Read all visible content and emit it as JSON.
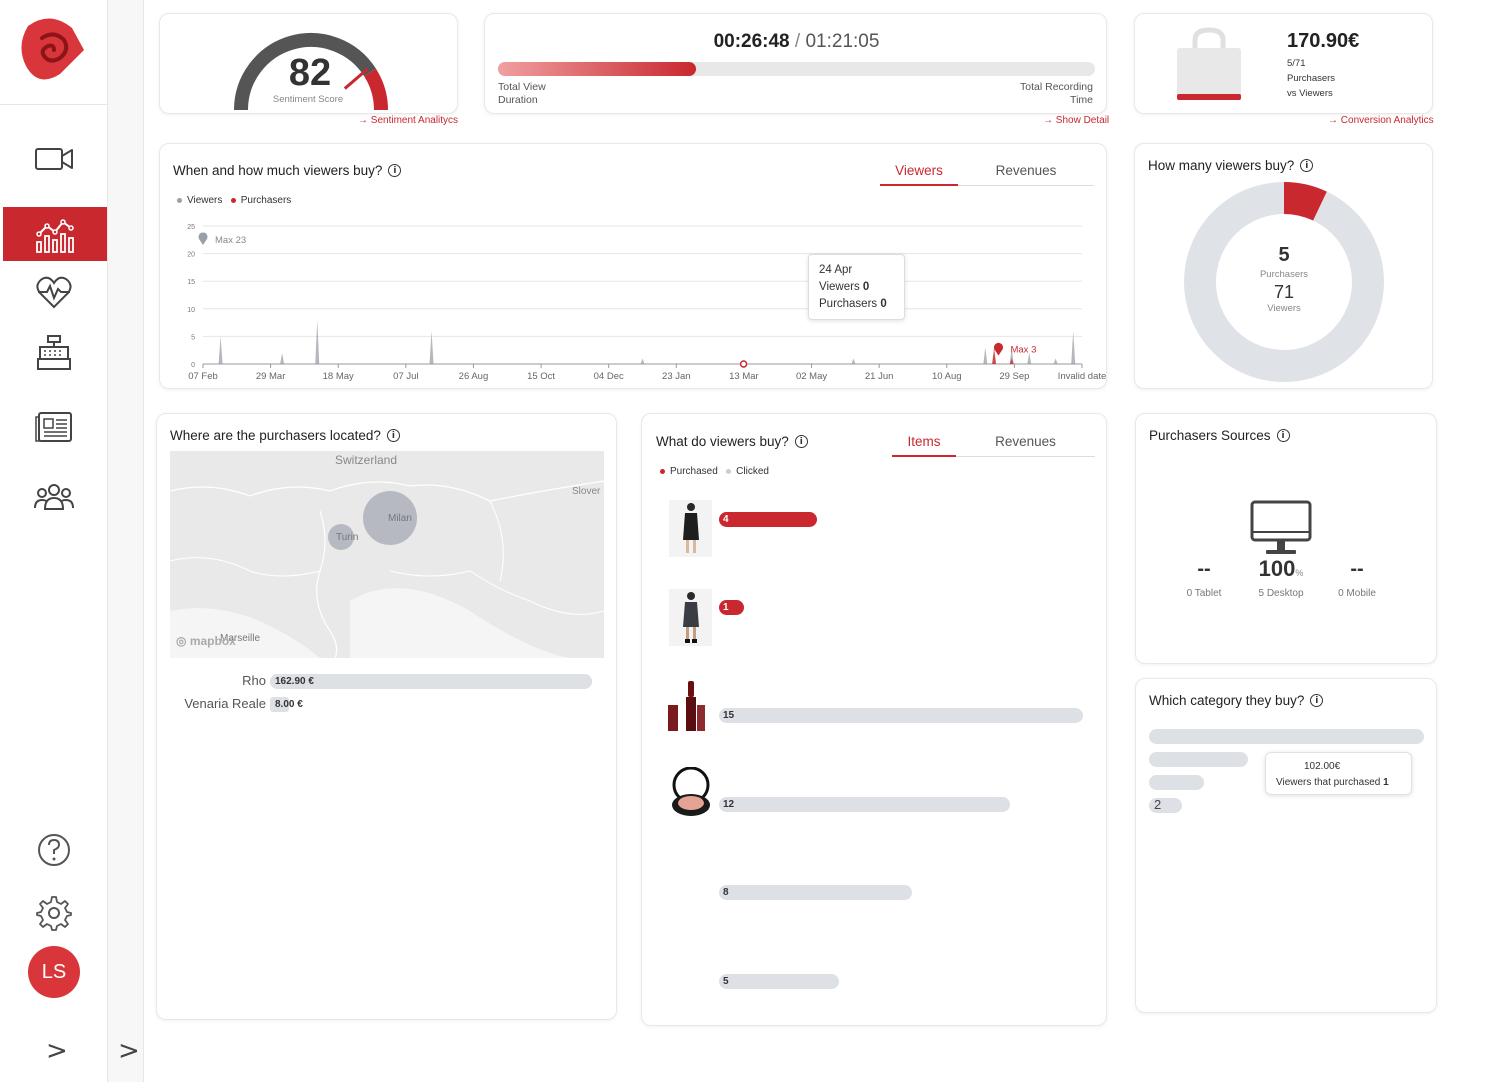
{
  "nav": {
    "items": [
      "video-icon",
      "analytics-icon",
      "health-icon",
      "register-icon",
      "news-icon",
      "users-icon"
    ],
    "active": "analytics-icon",
    "help": "help-icon",
    "settings": "gear-icon",
    "avatar": "LS",
    "expand": ">",
    "expand2": ">"
  },
  "colors": {
    "accent": "#c8282e",
    "grey": "#dde0e5"
  },
  "sentiment": {
    "score": "82",
    "label": "Sentiment Score",
    "link": "Sentiment Analitycs",
    "score_fraction": 0.82
  },
  "duration": {
    "view": "00:26:48",
    "separator": "/",
    "total": "01:21:05",
    "left_label_1": "Total View",
    "left_label_2": "Duration",
    "right_label_1": "Total Recording",
    "right_label_2": "Time",
    "link": "Show Detail",
    "progress": 0.331
  },
  "conversion": {
    "amount": "170.90€",
    "ratio": "5/71",
    "line1": "Purchasers",
    "line2": "vs Viewers",
    "link": "Conversion Analytics"
  },
  "when_buy": {
    "title": "When and how much viewers buy?",
    "tabs": [
      "Viewers",
      "Revenues"
    ],
    "active_tab": "Viewers",
    "legend": [
      "Viewers",
      "Purchasers"
    ],
    "tooltip": {
      "date": "24 Apr",
      "viewers_label": "Viewers",
      "viewers": "0",
      "purchasers_label": "Purchasers",
      "purchasers": "0"
    },
    "max_viewers_label": "Max 23",
    "max_purchasers_label": "Max 3"
  },
  "chart_data": {
    "type": "line",
    "x_ticks": [
      "07 Feb",
      "29 Mar",
      "18 May",
      "07 Jul",
      "26 Aug",
      "15 Oct",
      "04 Dec",
      "23 Jan",
      "13 Mar",
      "02 May",
      "21 Jun",
      "10 Aug",
      "29 Sep",
      "Invalid date"
    ],
    "y_ticks": [
      "0",
      "5",
      "10",
      "15",
      "20",
      "25"
    ],
    "ylim": [
      0,
      25
    ],
    "series": [
      {
        "name": "Viewers",
        "color": "#9aa0a8",
        "peaks": [
          [
            0.02,
            5
          ],
          [
            0.09,
            2
          ],
          [
            0.13,
            8
          ],
          [
            0.26,
            6
          ],
          [
            0.5,
            1
          ],
          [
            0.74,
            1
          ],
          [
            0.89,
            3
          ],
          [
            0.9,
            2
          ],
          [
            0.92,
            3
          ],
          [
            0.94,
            2
          ],
          [
            0.97,
            1
          ],
          [
            0.99,
            6
          ]
        ]
      },
      {
        "name": "Purchasers",
        "color": "#c8282e",
        "peaks": [
          [
            0.615,
            0
          ],
          [
            0.9,
            3
          ],
          [
            0.92,
            1
          ]
        ]
      }
    ],
    "max_marker": {
      "x": 0.0,
      "value": 23
    },
    "purchaser_max_marker": {
      "x": 0.905,
      "value": 3
    }
  },
  "how_many": {
    "title": "How many viewers buy?",
    "purchasers": "5",
    "purchasers_label": "Purchasers",
    "viewers": "71",
    "viewers_label": "Viewers",
    "fraction": 0.0704
  },
  "location": {
    "title": "Where are the purchasers located?",
    "map_labels": [
      "Switzerland",
      "Slover",
      "Milan",
      "Turin",
      "Marseille"
    ],
    "mapbox": "mapbox",
    "rows": [
      {
        "city": "Rho",
        "value": "162.90 €",
        "fraction": 1.0
      },
      {
        "city": "Venaria Reale",
        "value": "8.00 €",
        "fraction": 0.06
      }
    ]
  },
  "what_buy": {
    "title": "What do viewers buy?",
    "tabs": [
      "Items",
      "Revenues"
    ],
    "active_tab": "Items",
    "legend": [
      "Purchased",
      "Clicked"
    ],
    "items": [
      {
        "img": "dress-black",
        "purchased": "4",
        "clicked_fraction": 0.27,
        "purchased_fraction": 0.27
      },
      {
        "img": "dress-grey",
        "purchased": "1",
        "clicked_fraction": 0.07,
        "purchased_fraction": 0.07
      },
      {
        "img": "lipstick",
        "clicked": "15",
        "clicked_fraction": 1.0,
        "purchased_fraction": 0
      },
      {
        "img": "blush",
        "clicked": "12",
        "clicked_fraction": 0.8,
        "purchased_fraction": 0
      },
      {
        "img": "",
        "clicked": "8",
        "clicked_fraction": 0.53,
        "purchased_fraction": 0
      },
      {
        "img": "",
        "clicked": "5",
        "clicked_fraction": 0.33,
        "purchased_fraction": 0
      }
    ]
  },
  "sources": {
    "title": "Purchasers Sources",
    "tablet_value": "--",
    "tablet_label": "0 Tablet",
    "desktop_value": "100",
    "desktop_unit": "%",
    "desktop_label": "5 Desktop",
    "mobile_value": "--",
    "mobile_label": "0 Mobile"
  },
  "category": {
    "title": "Which category they buy?",
    "bars": [
      {
        "fraction": 1.0
      },
      {
        "fraction": 0.36
      },
      {
        "fraction": 0.2
      },
      {
        "label": "2",
        "fraction": 0.12
      }
    ],
    "tooltip": {
      "amount": "102.00€",
      "label": "Viewers that purchased",
      "count": "1"
    }
  }
}
